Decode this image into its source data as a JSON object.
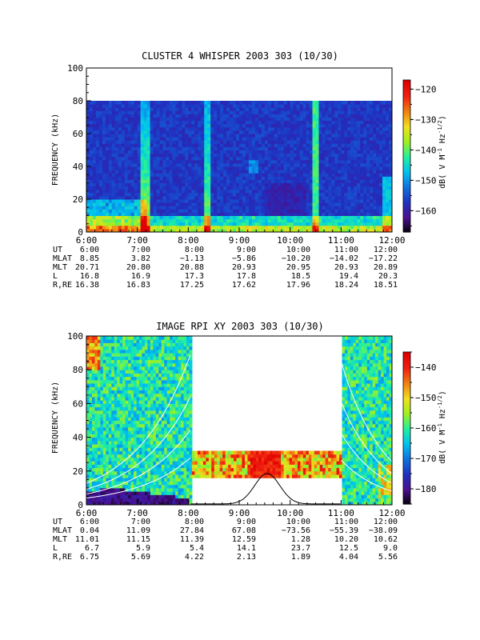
{
  "chart_data": [
    {
      "type": "heatmap",
      "title": "CLUSTER 4 WHISPER 2003 303 (10/30)",
      "ylabel": "FREQUENCY (kHz)",
      "ylim": [
        0,
        100
      ],
      "yticks": [
        "0",
        "20",
        "40",
        "60",
        "80",
        "100"
      ],
      "xticks": [
        "6:00",
        "7:00",
        "8:00",
        "9:00",
        "10:00",
        "11:00",
        "12:00"
      ],
      "data_coverage_max_freq_khz": 80,
      "colorbar": {
        "label": "dB( V M⁻¹ Hz⁻¹ᐟ²)",
        "label_text": "dB( V M",
        "label_sup1": "-1",
        "label_mid": " Hz",
        "label_sup2": "-1/2",
        "label_end": ")",
        "range": [
          -167,
          -117
        ],
        "ticks": [
          "-120",
          "-130",
          "-140",
          "-150",
          "-160"
        ]
      },
      "table": {
        "rows": [
          {
            "label": "UT",
            "values": [
              "6:00",
              "7:00",
              "8:00",
              "9:00",
              "10:00",
              "11:00",
              "12:00"
            ]
          },
          {
            "label": "MLAT",
            "values": [
              "8.85",
              "3.82",
              "−1.13",
              "−5.86",
              "−10.20",
              "−14.02",
              "−17.22"
            ]
          },
          {
            "label": "MLT",
            "values": [
              "20.71",
              "20.80",
              "20.88",
              "20.93",
              "20.95",
              "20.93",
              "20.89"
            ]
          },
          {
            "label": "L",
            "values": [
              "16.8",
              "16.9",
              "17.3",
              "17.8",
              "18.5",
              "19.4",
              "20.3"
            ]
          },
          {
            "label": "R,RE",
            "values": [
              "16.38",
              "16.83",
              "17.25",
              "17.62",
              "17.96",
              "18.24",
              "18.51"
            ]
          }
        ]
      }
    },
    {
      "type": "heatmap",
      "title": "IMAGE RPI XY 2003 303 (10/30)",
      "ylabel": "FREQUENCY (kHz)",
      "ylim": [
        0,
        100
      ],
      "yticks": [
        "0",
        "20",
        "40",
        "60",
        "80",
        "100"
      ],
      "xticks": [
        "6:00",
        "7:00",
        "8:00",
        "9:00",
        "10:00",
        "11:00",
        "12:00"
      ],
      "data_gap_hours": [
        8.05,
        11.0
      ],
      "gap_band_khz": [
        16,
        32
      ],
      "colorbar": {
        "label_text": "dB( V M",
        "label_sup1": "-1",
        "label_mid": " Hz",
        "label_sup2": "-1/2",
        "label_end": ")",
        "range": [
          -185,
          -135
        ],
        "ticks": [
          "-140",
          "-150",
          "-160",
          "-170",
          "-180"
        ]
      },
      "table": {
        "rows": [
          {
            "label": "UT",
            "values": [
              "6:00",
              "7:00",
              "8:00",
              "9:00",
              "10:00",
              "11:00",
              "12:00"
            ]
          },
          {
            "label": "MLAT",
            "values": [
              "0.04",
              "11.09",
              "27.84",
              "67.08",
              "−73.56",
              "−55.39",
              "−38.09"
            ]
          },
          {
            "label": "MLT",
            "values": [
              "11.01",
              "11.15",
              "11.39",
              "12.59",
              "1.28",
              "10.20",
              "10.62"
            ]
          },
          {
            "label": "L",
            "values": [
              "6.7",
              "5.9",
              "5.4",
              "14.1",
              "23.7",
              "12.5",
              "9.0"
            ]
          },
          {
            "label": "R,RE",
            "values": [
              "6.75",
              "5.69",
              "4.22",
              "2.13",
              "1.89",
              "4.04",
              "5.56"
            ]
          }
        ]
      }
    }
  ],
  "colors": {
    "axis": "#000000",
    "background": "#ffffff",
    "colormap": [
      "#000000",
      "#4b0f8f",
      "#2030c0",
      "#1070e0",
      "#00c0f0",
      "#20f0a0",
      "#a0f020",
      "#f0e020",
      "#f08010",
      "#f02010",
      "#e00000"
    ]
  }
}
